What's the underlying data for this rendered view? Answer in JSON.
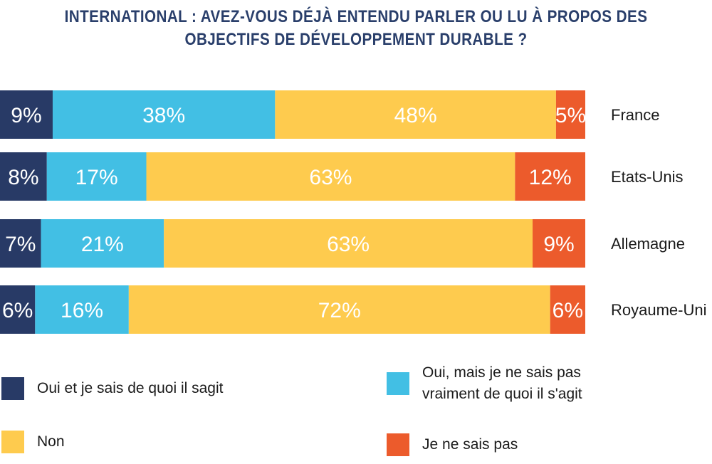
{
  "chart_data": {
    "type": "bar",
    "orientation": "horizontal",
    "stacked": true,
    "title_lines": [
      "INTERNATIONAL : AVEZ-VOUS DÉJÀ ENTENDU PARLER OU LU À PROPOS DES",
      "OBJECTIFS DE DÉVELOPPEMENT DURABLE ?"
    ],
    "categories": [
      "France",
      "Etats-Unis",
      "Allemagne",
      "Royaume-Uni"
    ],
    "series": [
      {
        "name": "Oui et je sais de quoi il sagit",
        "color": "#283a66",
        "values": [
          9,
          8,
          7,
          6
        ],
        "labels": [
          "9%",
          "8%",
          "7%",
          "6%"
        ]
      },
      {
        "name": "Oui, mais je ne sais pas vraiment de quoi il s'agit",
        "color": "#42bfe4",
        "values": [
          38,
          17,
          21,
          16
        ],
        "labels": [
          "38%",
          "17%",
          "21%",
          "16%"
        ]
      },
      {
        "name": "Non",
        "color": "#fecb4e",
        "values": [
          48,
          63,
          63,
          72
        ],
        "labels": [
          "48%",
          "63%",
          "63%",
          "72%"
        ]
      },
      {
        "name": "Je ne sais pas",
        "color": "#ec5b2c",
        "values": [
          5,
          12,
          9,
          6
        ],
        "labels": [
          "5%",
          "12%",
          "9%",
          "6%"
        ]
      }
    ],
    "legend": {
      "position": "bottom",
      "items": [
        {
          "label": "Oui et je sais de quoi il sagit",
          "color": "#283a66"
        },
        {
          "label_lines": [
            "Oui, mais je ne sais pas",
            "vraiment de quoi il s'agit"
          ],
          "color": "#42bfe4"
        },
        {
          "label": "Non",
          "color": "#fecb4e"
        },
        {
          "label": "Je ne sais pas",
          "color": "#ec5b2c"
        }
      ]
    },
    "grid": false
  }
}
